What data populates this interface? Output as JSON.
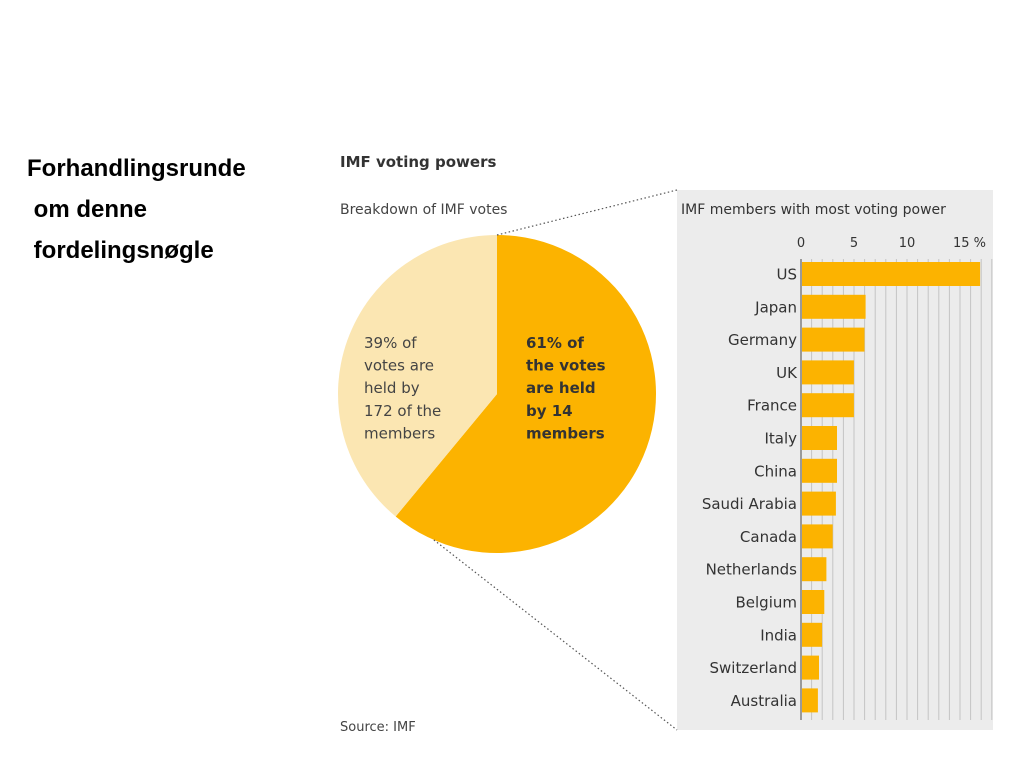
{
  "slide": {
    "title_lines": [
      "Forhandlingsrunde",
      " om denne",
      " fordelingsnøgle"
    ]
  },
  "chart_data": [
    {
      "type": "pie",
      "title": "IMF voting powers",
      "subtitle": "Breakdown of IMF votes",
      "slices": [
        {
          "value": 61,
          "label_lines": [
            "61% of",
            "the votes",
            "are held",
            "by 14",
            "members"
          ],
          "color": "#fcb300"
        },
        {
          "value": 39,
          "label_lines": [
            "39% of",
            "votes are",
            "held by",
            "172 of the",
            "members"
          ],
          "color": "#fbe6b2"
        }
      ],
      "source": "Source: IMF"
    },
    {
      "type": "bar",
      "orientation": "horizontal",
      "title": "IMF members with most voting power",
      "categories": [
        "US",
        "Japan",
        "Germany",
        "UK",
        "France",
        "Italy",
        "China",
        "Saudi Arabia",
        "Canada",
        "Netherlands",
        "Belgium",
        "India",
        "Switzerland",
        "Australia"
      ],
      "values": [
        16.8,
        6.0,
        5.9,
        4.9,
        4.9,
        3.3,
        3.3,
        3.2,
        2.9,
        2.3,
        2.1,
        1.9,
        1.6,
        1.5
      ],
      "ticks": [
        0,
        5,
        10,
        15
      ],
      "tick_labels": [
        "0",
        "5",
        "10",
        "15 %"
      ],
      "xlim": [
        0,
        18
      ],
      "grid": true,
      "colors": {
        "bar": "#fcb300",
        "panel": "#ececec",
        "grid": "#c4c4c4"
      }
    }
  ]
}
